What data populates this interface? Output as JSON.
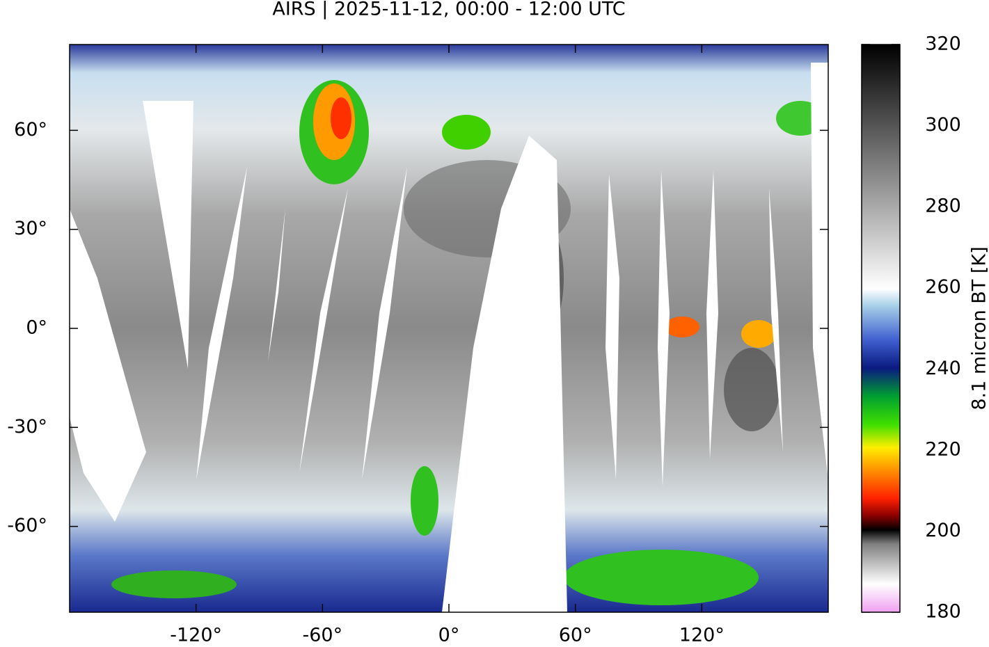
{
  "chart_data": {
    "type": "map",
    "title": "AIRS | 2025-11-12, 00:00 - 12:00 UTC",
    "xlim": [
      -180,
      180
    ],
    "ylim": [
      -86,
      86
    ],
    "xticks": [
      {
        "value": -120,
        "label": "-120°"
      },
      {
        "value": -60,
        "label": "-60°"
      },
      {
        "value": 0,
        "label": "0°"
      },
      {
        "value": 60,
        "label": "60°"
      },
      {
        "value": 120,
        "label": "120°"
      }
    ],
    "yticks": [
      {
        "value": -60,
        "label": "-60°"
      },
      {
        "value": -30,
        "label": "-30°"
      },
      {
        "value": 0,
        "label": "0°"
      },
      {
        "value": 30,
        "label": "30°"
      },
      {
        "value": 60,
        "label": "60°"
      }
    ],
    "colorbar": {
      "label": "8.1 micron BT [K]",
      "lim": [
        180,
        320
      ],
      "ticks": [
        180,
        200,
        220,
        240,
        260,
        280,
        300,
        320
      ]
    }
  }
}
